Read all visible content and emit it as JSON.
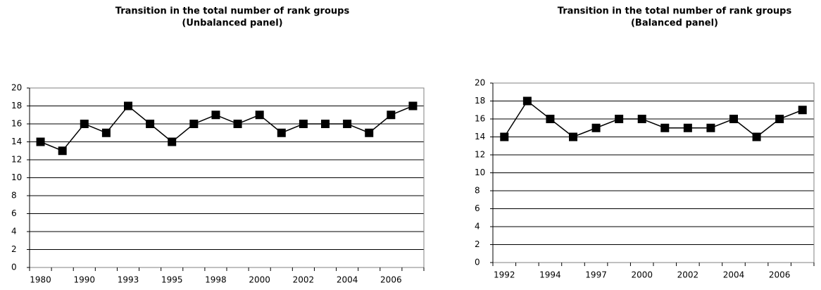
{
  "chart_data": [
    {
      "type": "line",
      "title": "Transition in the total number of rank groups",
      "subtitle": "(Unbalanced panel)",
      "categories": [
        "1980",
        null,
        "1990",
        null,
        "1993",
        null,
        "1995",
        null,
        "1998",
        null,
        "2000",
        null,
        "2002",
        null,
        "2004",
        null,
        "2006",
        null
      ],
      "series": [
        {
          "name": "Rank groups",
          "color": "#000000",
          "values": [
            14,
            13,
            16,
            15,
            18,
            16,
            14,
            16,
            17,
            16,
            17,
            15,
            16,
            16,
            16,
            15,
            17,
            18
          ]
        }
      ],
      "ylim": [
        0,
        20
      ],
      "yticks": [
        0,
        2,
        4,
        6,
        8,
        10,
        12,
        14,
        16,
        18,
        20
      ],
      "grid": true
    },
    {
      "type": "line",
      "title": "Transition in the total number of rank groups",
      "subtitle": "(Balanced panel)",
      "categories": [
        "1992",
        null,
        "1994",
        null,
        "1997",
        null,
        "2000",
        null,
        "2002",
        null,
        "2004",
        null,
        "2006",
        null
      ],
      "series": [
        {
          "name": "Rank groups",
          "color": "#000000",
          "values": [
            14,
            18,
            16,
            14,
            15,
            16,
            16,
            15,
            15,
            15,
            16,
            14,
            16,
            17
          ]
        }
      ],
      "ylim": [
        0,
        20
      ],
      "yticks": [
        0,
        2,
        4,
        6,
        8,
        10,
        12,
        14,
        16,
        18,
        20
      ],
      "grid": true
    }
  ]
}
